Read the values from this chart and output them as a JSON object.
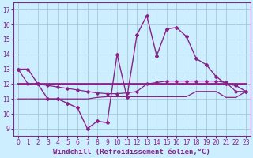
{
  "xlabel": "Windchill (Refroidissement éolien,°C)",
  "background_color": "#cceeff",
  "grid_color": "#aaccdd",
  "line_color": "#882288",
  "x_values": [
    0,
    1,
    2,
    3,
    4,
    5,
    6,
    7,
    8,
    9,
    10,
    11,
    12,
    13,
    14,
    15,
    16,
    17,
    18,
    19,
    20,
    21,
    22,
    23
  ],
  "y_main": [
    13,
    13,
    12,
    11,
    11,
    10.7,
    10.4,
    9.0,
    9.5,
    9.4,
    14.0,
    11.1,
    15.3,
    16.6,
    13.9,
    15.7,
    15.8,
    15.2,
    13.7,
    13.3,
    12.5,
    12.0,
    11.9,
    11.5
  ],
  "y_line2": [
    13,
    12,
    12,
    11.9,
    11.8,
    11.7,
    11.6,
    11.5,
    11.4,
    11.35,
    11.35,
    11.4,
    11.5,
    12.0,
    12.1,
    12.2,
    12.2,
    12.2,
    12.2,
    12.2,
    12.2,
    12.1,
    11.5,
    11.5
  ],
  "y_line3": [
    12,
    12,
    12,
    12,
    12,
    12,
    12,
    12,
    12,
    12,
    12,
    12,
    12,
    12,
    12,
    12,
    12,
    12,
    12,
    12,
    12,
    12,
    12,
    12
  ],
  "y_line4": [
    11,
    11,
    11,
    11,
    11,
    11,
    11,
    11,
    11.1,
    11.15,
    11.15,
    11.15,
    11.15,
    11.15,
    11.15,
    11.15,
    11.15,
    11.15,
    11.5,
    11.5,
    11.5,
    11.1,
    11.1,
    11.5
  ],
  "ylim": [
    8.5,
    17.5
  ],
  "xlim": [
    -0.5,
    23.5
  ],
  "yticks": [
    9,
    10,
    11,
    12,
    13,
    14,
    15,
    16,
    17
  ],
  "xticks": [
    0,
    1,
    2,
    3,
    4,
    5,
    6,
    7,
    8,
    9,
    10,
    11,
    12,
    13,
    14,
    15,
    16,
    17,
    18,
    19,
    20,
    21,
    22,
    23
  ],
  "tick_fontsize": 5.5,
  "xlabel_fontsize": 6.5
}
